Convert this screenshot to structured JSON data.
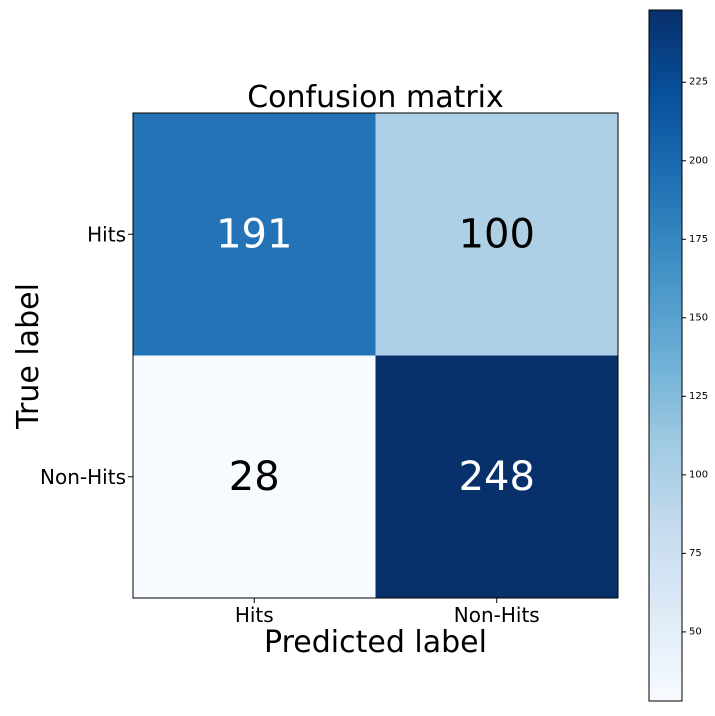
{
  "chart_data": {
    "type": "heatmap",
    "title": "Confusion matrix",
    "xlabel": "Predicted label",
    "ylabel": "True label",
    "x_categories": [
      "Hits",
      "Non-Hits"
    ],
    "y_categories": [
      "Hits",
      "Non-Hits"
    ],
    "values": [
      [
        191,
        100
      ],
      [
        28,
        248
      ]
    ],
    "value_labels": [
      [
        "191",
        "100"
      ],
      [
        "28",
        "248"
      ]
    ],
    "colormap": "Blues",
    "colorbar": {
      "range": [
        28,
        248
      ],
      "ticks": [
        50,
        75,
        100,
        125,
        150,
        175,
        200,
        225
      ],
      "tick_labels": [
        "50",
        "75",
        "100",
        "125",
        "150",
        "175",
        "200",
        "225"
      ]
    },
    "grid": false
  },
  "colors": {
    "blues_scale": [
      "#f7fbff",
      "#deebf7",
      "#c6dbef",
      "#9ecae1",
      "#6baed6",
      "#4292c6",
      "#2171b5",
      "#08519c",
      "#08306b"
    ],
    "text_on_dark": "#ffffff",
    "text_on_light": "#000000",
    "axis": "#000000"
  }
}
